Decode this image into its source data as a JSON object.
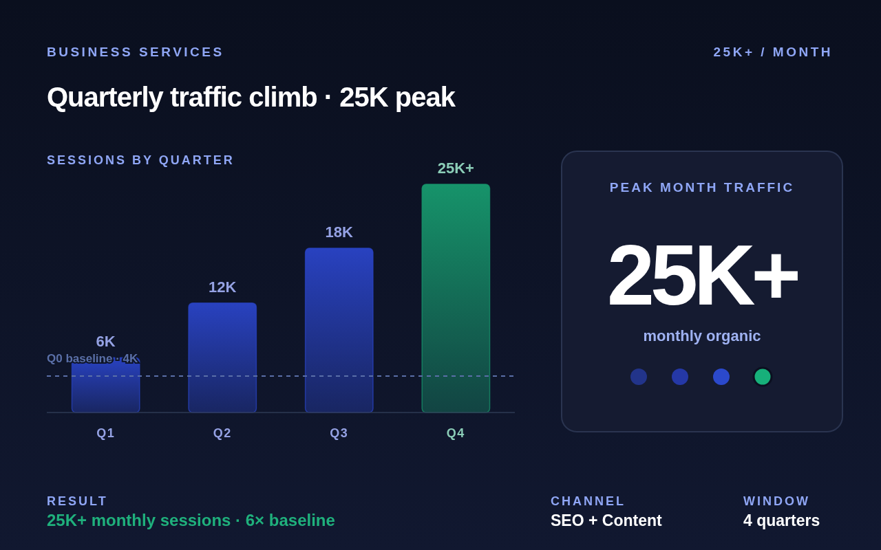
{
  "chart_data": [
    {
      "type": "bar",
      "title": "Quarterly traffic climb · 25K peak",
      "subtitle": "SESSIONS BY QUARTER",
      "categories": [
        "Q1",
        "Q2",
        "Q3",
        "Q4"
      ],
      "values": [
        6,
        12,
        18,
        25
      ],
      "colors": [
        "#2a44c8",
        "#2a44c8",
        "#2a44c8",
        "#179a6e"
      ],
      "value_labels": [
        "6K",
        "12K",
        "18K",
        "25K+"
      ],
      "ref_lines": [
        {
          "axis": "y",
          "value": 4,
          "label": "Q0 baseline · 4K",
          "color": "#5a6fa8",
          "line_style": "dashed"
        }
      ],
      "annotations": [
        "BUSINESS SERVICES",
        "25K+ / MONTH",
        "RESULT",
        "25K+ monthly sessions · 6× baseline",
        "CHANNEL",
        "SEO + Content",
        "WINDOW",
        "4 quarters"
      ]
    },
    {
      "type": "other",
      "title": "PEAK MONTH TRAFFIC",
      "annotations": [
        "25K+",
        "monthly organic"
      ]
    }
  ]
}
